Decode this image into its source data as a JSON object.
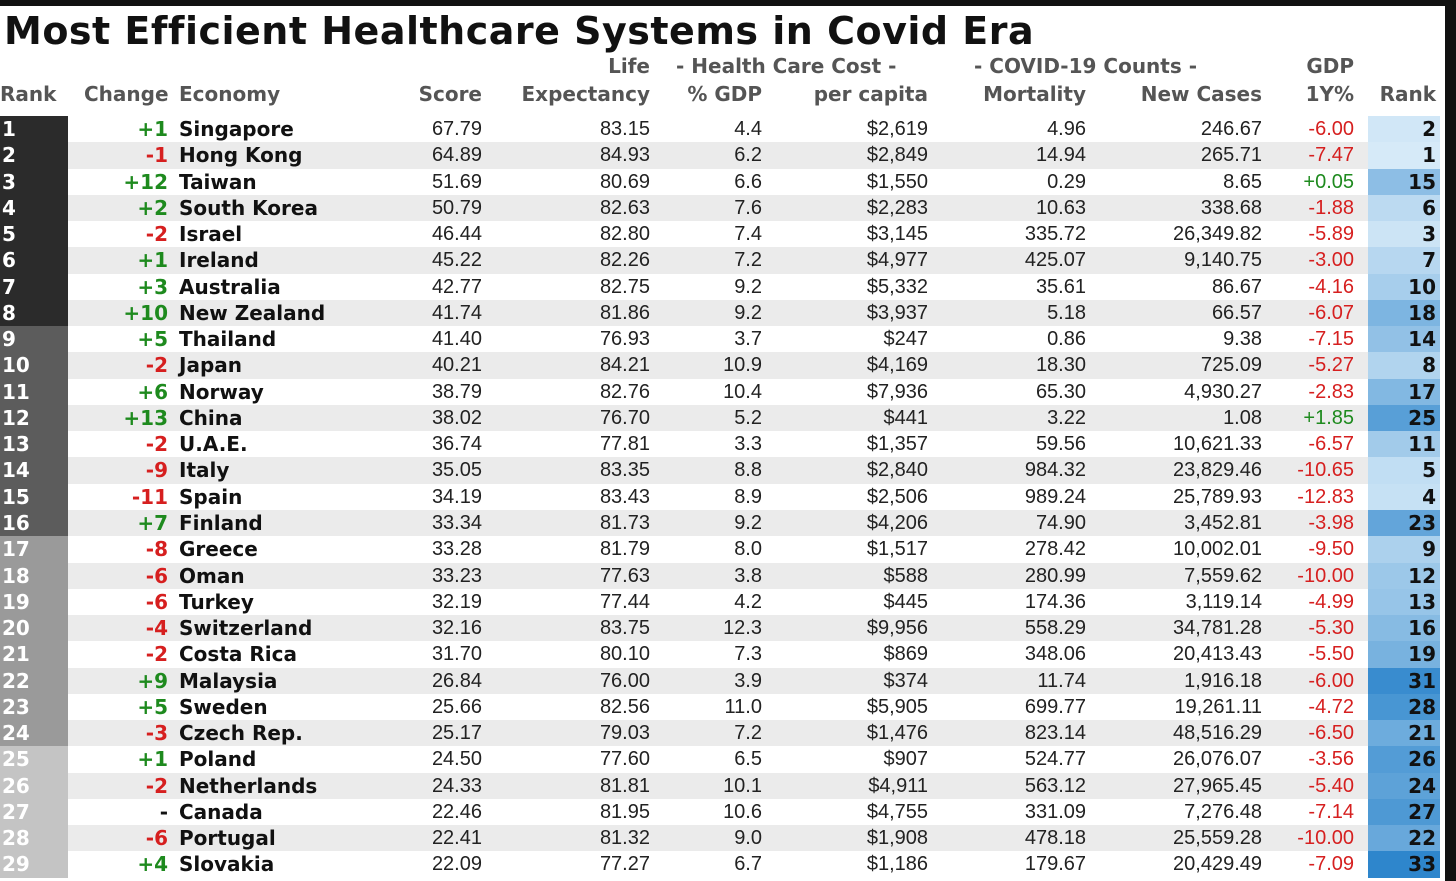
{
  "title": "Most Efficient Healthcare Systems in Covid Era",
  "headers": {
    "rank": "Rank",
    "change": "Change",
    "economy": "Economy",
    "score": "Score",
    "life_top": "Life",
    "life_bottom": "Expectancy",
    "hcc_group": "- Health Care Cost -",
    "hcc_gdp": "% GDP",
    "hcc_pc": "per capita",
    "covid_group": "- COVID-19 Counts -",
    "mortality": "Mortality",
    "new_cases": "New Cases",
    "gdp_top": "GDP",
    "gdp_bottom": "1Y%",
    "rank2": "Rank"
  },
  "colors": {
    "rank_dark": "#2b2b2b",
    "rank_mid": "#5c5c5c",
    "rank_light": "#9a9a9a",
    "rank_lighter": "#c4c4c4",
    "positive": "#1e8a1e",
    "negative": "#d61f1f",
    "row_alt": "#ebebeb"
  },
  "rows": [
    {
      "rank": "1",
      "change": "+1",
      "economy": "Singapore",
      "score": "67.79",
      "life": "83.15",
      "gdp_pct": "4.4",
      "per_capita": "$2,619",
      "mortality": "4.96",
      "new_cases": "246.67",
      "gdp1y": "-6.00",
      "rank2": "2"
    },
    {
      "rank": "2",
      "change": "-1",
      "economy": "Hong Kong",
      "score": "64.89",
      "life": "84.93",
      "gdp_pct": "6.2",
      "per_capita": "$2,849",
      "mortality": "14.94",
      "new_cases": "265.71",
      "gdp1y": "-7.47",
      "rank2": "1"
    },
    {
      "rank": "3",
      "change": "+12",
      "economy": "Taiwan",
      "score": "51.69",
      "life": "80.69",
      "gdp_pct": "6.6",
      "per_capita": "$1,550",
      "mortality": "0.29",
      "new_cases": "8.65",
      "gdp1y": "+0.05",
      "rank2": "15"
    },
    {
      "rank": "4",
      "change": "+2",
      "economy": "South Korea",
      "score": "50.79",
      "life": "82.63",
      "gdp_pct": "7.6",
      "per_capita": "$2,283",
      "mortality": "10.63",
      "new_cases": "338.68",
      "gdp1y": "-1.88",
      "rank2": "6"
    },
    {
      "rank": "5",
      "change": "-2",
      "economy": "Israel",
      "score": "46.44",
      "life": "82.80",
      "gdp_pct": "7.4",
      "per_capita": "$3,145",
      "mortality": "335.72",
      "new_cases": "26,349.82",
      "gdp1y": "-5.89",
      "rank2": "3"
    },
    {
      "rank": "6",
      "change": "+1",
      "economy": "Ireland",
      "score": "45.22",
      "life": "82.26",
      "gdp_pct": "7.2",
      "per_capita": "$4,977",
      "mortality": "425.07",
      "new_cases": "9,140.75",
      "gdp1y": "-3.00",
      "rank2": "7"
    },
    {
      "rank": "7",
      "change": "+3",
      "economy": "Australia",
      "score": "42.77",
      "life": "82.75",
      "gdp_pct": "9.2",
      "per_capita": "$5,332",
      "mortality": "35.61",
      "new_cases": "86.67",
      "gdp1y": "-4.16",
      "rank2": "10"
    },
    {
      "rank": "8",
      "change": "+10",
      "economy": "New Zealand",
      "score": "41.74",
      "life": "81.86",
      "gdp_pct": "9.2",
      "per_capita": "$3,937",
      "mortality": "5.18",
      "new_cases": "66.57",
      "gdp1y": "-6.07",
      "rank2": "18"
    },
    {
      "rank": "9",
      "change": "+5",
      "economy": "Thailand",
      "score": "41.40",
      "life": "76.93",
      "gdp_pct": "3.7",
      "per_capita": "$247",
      "mortality": "0.86",
      "new_cases": "9.38",
      "gdp1y": "-7.15",
      "rank2": "14"
    },
    {
      "rank": "10",
      "change": "-2",
      "economy": "Japan",
      "score": "40.21",
      "life": "84.21",
      "gdp_pct": "10.9",
      "per_capita": "$4,169",
      "mortality": "18.30",
      "new_cases": "725.09",
      "gdp1y": "-5.27",
      "rank2": "8"
    },
    {
      "rank": "11",
      "change": "+6",
      "economy": "Norway",
      "score": "38.79",
      "life": "82.76",
      "gdp_pct": "10.4",
      "per_capita": "$7,936",
      "mortality": "65.30",
      "new_cases": "4,930.27",
      "gdp1y": "-2.83",
      "rank2": "17"
    },
    {
      "rank": "12",
      "change": "+13",
      "economy": "China",
      "score": "38.02",
      "life": "76.70",
      "gdp_pct": "5.2",
      "per_capita": "$441",
      "mortality": "3.22",
      "new_cases": "1.08",
      "gdp1y": "+1.85",
      "rank2": "25"
    },
    {
      "rank": "13",
      "change": "-2",
      "economy": "U.A.E.",
      "score": "36.74",
      "life": "77.81",
      "gdp_pct": "3.3",
      "per_capita": "$1,357",
      "mortality": "59.56",
      "new_cases": "10,621.33",
      "gdp1y": "-6.57",
      "rank2": "11"
    },
    {
      "rank": "14",
      "change": "-9",
      "economy": "Italy",
      "score": "35.05",
      "life": "83.35",
      "gdp_pct": "8.8",
      "per_capita": "$2,840",
      "mortality": "984.32",
      "new_cases": "23,829.46",
      "gdp1y": "-10.65",
      "rank2": "5"
    },
    {
      "rank": "15",
      "change": "-11",
      "economy": "Spain",
      "score": "34.19",
      "life": "83.43",
      "gdp_pct": "8.9",
      "per_capita": "$2,506",
      "mortality": "989.24",
      "new_cases": "25,789.93",
      "gdp1y": "-12.83",
      "rank2": "4"
    },
    {
      "rank": "16",
      "change": "+7",
      "economy": "Finland",
      "score": "33.34",
      "life": "81.73",
      "gdp_pct": "9.2",
      "per_capita": "$4,206",
      "mortality": "74.90",
      "new_cases": "3,452.81",
      "gdp1y": "-3.98",
      "rank2": "23"
    },
    {
      "rank": "17",
      "change": "-8",
      "economy": "Greece",
      "score": "33.28",
      "life": "81.79",
      "gdp_pct": "8.0",
      "per_capita": "$1,517",
      "mortality": "278.42",
      "new_cases": "10,002.01",
      "gdp1y": "-9.50",
      "rank2": "9"
    },
    {
      "rank": "18",
      "change": "-6",
      "economy": "Oman",
      "score": "33.23",
      "life": "77.63",
      "gdp_pct": "3.8",
      "per_capita": "$588",
      "mortality": "280.99",
      "new_cases": "7,559.62",
      "gdp1y": "-10.00",
      "rank2": "12"
    },
    {
      "rank": "19",
      "change": "-6",
      "economy": "Turkey",
      "score": "32.19",
      "life": "77.44",
      "gdp_pct": "4.2",
      "per_capita": "$445",
      "mortality": "174.36",
      "new_cases": "3,119.14",
      "gdp1y": "-4.99",
      "rank2": "13"
    },
    {
      "rank": "20",
      "change": "-4",
      "economy": "Switzerland",
      "score": "32.16",
      "life": "83.75",
      "gdp_pct": "12.3",
      "per_capita": "$9,956",
      "mortality": "558.29",
      "new_cases": "34,781.28",
      "gdp1y": "-5.30",
      "rank2": "16"
    },
    {
      "rank": "21",
      "change": "-2",
      "economy": "Costa Rica",
      "score": "31.70",
      "life": "80.10",
      "gdp_pct": "7.3",
      "per_capita": "$869",
      "mortality": "348.06",
      "new_cases": "20,413.43",
      "gdp1y": "-5.50",
      "rank2": "19"
    },
    {
      "rank": "22",
      "change": "+9",
      "economy": "Malaysia",
      "score": "26.84",
      "life": "76.00",
      "gdp_pct": "3.9",
      "per_capita": "$374",
      "mortality": "11.74",
      "new_cases": "1,916.18",
      "gdp1y": "-6.00",
      "rank2": "31"
    },
    {
      "rank": "23",
      "change": "+5",
      "economy": "Sweden",
      "score": "25.66",
      "life": "82.56",
      "gdp_pct": "11.0",
      "per_capita": "$5,905",
      "mortality": "699.77",
      "new_cases": "19,261.11",
      "gdp1y": "-4.72",
      "rank2": "28"
    },
    {
      "rank": "24",
      "change": "-3",
      "economy": "Czech Rep.",
      "score": "25.17",
      "life": "79.03",
      "gdp_pct": "7.2",
      "per_capita": "$1,476",
      "mortality": "823.14",
      "new_cases": "48,516.29",
      "gdp1y": "-6.50",
      "rank2": "21"
    },
    {
      "rank": "25",
      "change": "+1",
      "economy": "Poland",
      "score": "24.50",
      "life": "77.60",
      "gdp_pct": "6.5",
      "per_capita": "$907",
      "mortality": "524.77",
      "new_cases": "26,076.07",
      "gdp1y": "-3.56",
      "rank2": "26"
    },
    {
      "rank": "26",
      "change": "-2",
      "economy": "Netherlands",
      "score": "24.33",
      "life": "81.81",
      "gdp_pct": "10.1",
      "per_capita": "$4,911",
      "mortality": "563.12",
      "new_cases": "27,965.45",
      "gdp1y": "-5.40",
      "rank2": "24"
    },
    {
      "rank": "27",
      "change": "-",
      "economy": "Canada",
      "score": "22.46",
      "life": "81.95",
      "gdp_pct": "10.6",
      "per_capita": "$4,755",
      "mortality": "331.09",
      "new_cases": "7,276.48",
      "gdp1y": "-7.14",
      "rank2": "27"
    },
    {
      "rank": "28",
      "change": "-6",
      "economy": "Portugal",
      "score": "22.41",
      "life": "81.32",
      "gdp_pct": "9.0",
      "per_capita": "$1,908",
      "mortality": "478.18",
      "new_cases": "25,559.28",
      "gdp1y": "-10.00",
      "rank2": "22"
    },
    {
      "rank": "29",
      "change": "+4",
      "economy": "Slovakia",
      "score": "22.09",
      "life": "77.27",
      "gdp_pct": "6.7",
      "per_capita": "$1,186",
      "mortality": "179.67",
      "new_cases": "20,429.49",
      "gdp1y": "-7.09",
      "rank2": "33"
    }
  ]
}
